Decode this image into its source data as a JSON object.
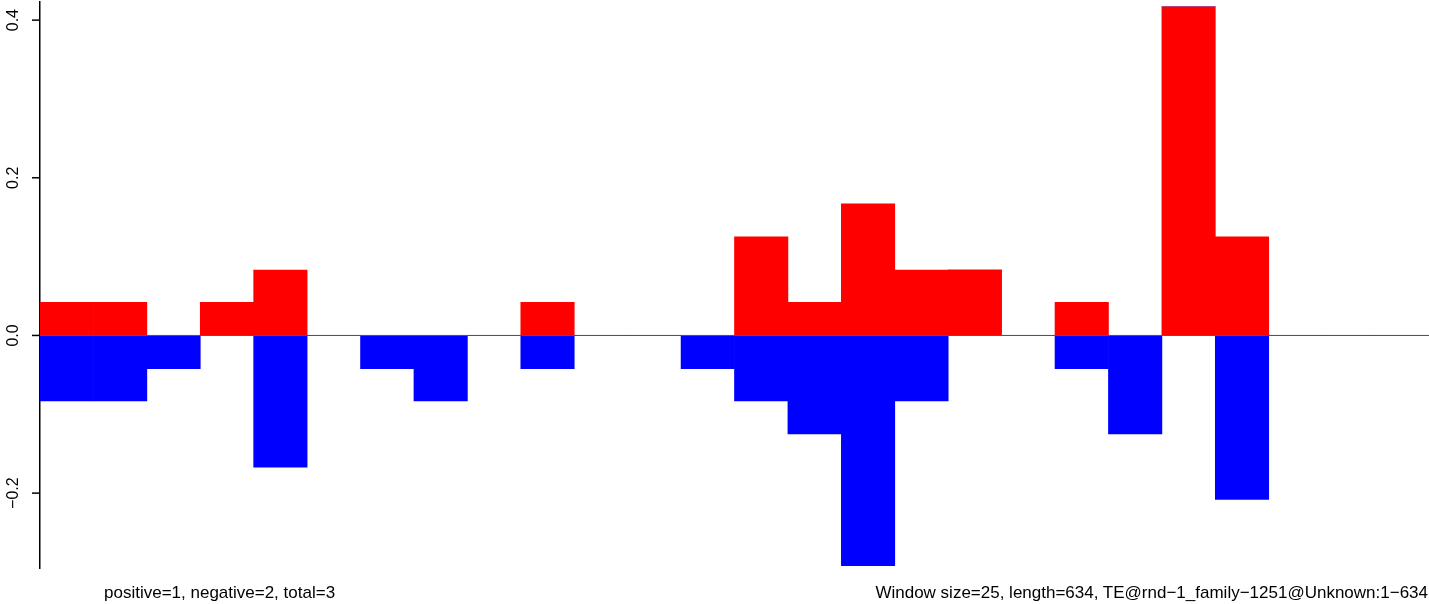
{
  "chart_data": {
    "type": "bar",
    "stacked": true,
    "categories": [
      null,
      null,
      null,
      null,
      null,
      null,
      null,
      null,
      null,
      null,
      null,
      null,
      null,
      null,
      null,
      null,
      null,
      null,
      null,
      null,
      null,
      null,
      null,
      null,
      null,
      null
    ],
    "series": [
      {
        "color": "#ff0000",
        "values": [
          0.042,
          0.042,
          0,
          0.042,
          0.083,
          0,
          0,
          0,
          0,
          0.042,
          0,
          0,
          0,
          0.125,
          0.042,
          0.167,
          0.083,
          0.083,
          0,
          0.042,
          0,
          0.417,
          0.125,
          0,
          0,
          0
        ]
      },
      {
        "color": "#0000ff",
        "values": [
          -0.083,
          -0.083,
          -0.042,
          0,
          -0.167,
          0,
          -0.042,
          -0.083,
          0,
          -0.042,
          0,
          0,
          -0.042,
          -0.083,
          -0.125,
          -0.292,
          -0.083,
          0,
          0,
          -0.042,
          -0.125,
          0,
          -0.208,
          0,
          0,
          0
        ]
      }
    ],
    "ylim": [
      -0.295,
      0.423
    ],
    "yticks": [
      {
        "value": -0.2,
        "label": "−0.2"
      },
      {
        "value": 0,
        "label": "0.0"
      },
      {
        "value": 0.2,
        "label": "0.2"
      },
      {
        "value": 0.4,
        "label": "0.4"
      }
    ],
    "grid": false,
    "legend": false,
    "ref_lines": [
      {
        "axis": "y",
        "value": 0,
        "color": "#555555"
      }
    ],
    "annotations": [
      "positive=1, negative=2, total=3",
      "Window size=25, length=634, TE@rnd−1_family−1251@Unknown:1−634"
    ]
  }
}
